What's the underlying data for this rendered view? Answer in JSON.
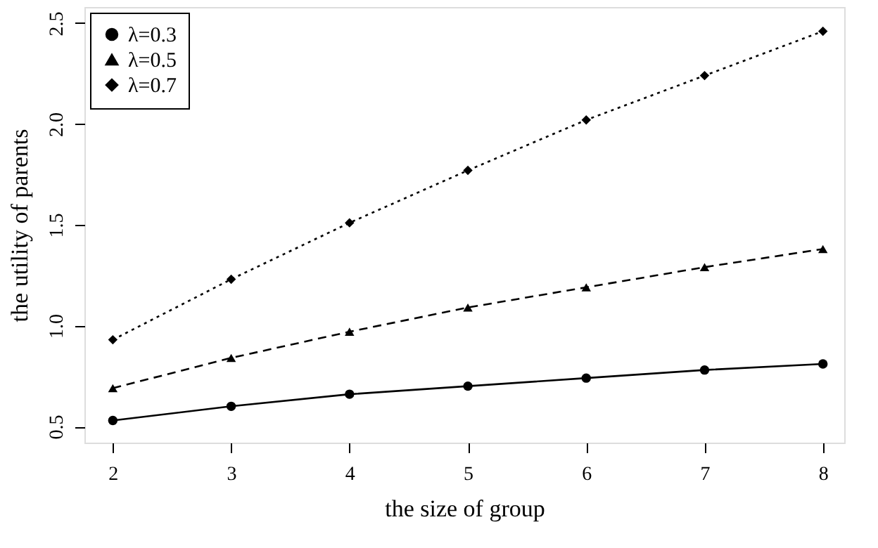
{
  "chart_data": {
    "type": "line",
    "xlabel": "the size of group",
    "ylabel": "the utility of parents",
    "x": [
      2,
      3,
      4,
      5,
      6,
      7,
      8
    ],
    "xlim": [
      1.76,
      8.18
    ],
    "ylim": [
      0.42,
      2.58
    ],
    "xticks": [
      2,
      3,
      4,
      5,
      6,
      7,
      8
    ],
    "yticks": [
      0.5,
      {
        "value": 1.0,
        "label": "1.0"
      },
      1.5,
      {
        "value": 2.0,
        "label": "2.0"
      },
      2.5
    ],
    "legend": "top left",
    "series": [
      {
        "name": "λ=0.3",
        "color": "#000000",
        "marker": "circle",
        "line_style": "solid",
        "values": [
          0.53,
          0.6,
          0.66,
          0.7,
          0.74,
          0.78,
          0.81
        ]
      },
      {
        "name": "λ=0.5",
        "color": "#000000",
        "marker": "triangle",
        "line_style": "dashed",
        "values": [
          0.69,
          0.84,
          0.97,
          1.09,
          1.19,
          1.29,
          1.38
        ]
      },
      {
        "name": "λ=0.7",
        "color": "#000000",
        "marker": "diamond",
        "line_style": "dotted",
        "values": [
          0.93,
          1.23,
          1.51,
          1.77,
          2.02,
          2.24,
          2.46
        ]
      }
    ]
  }
}
